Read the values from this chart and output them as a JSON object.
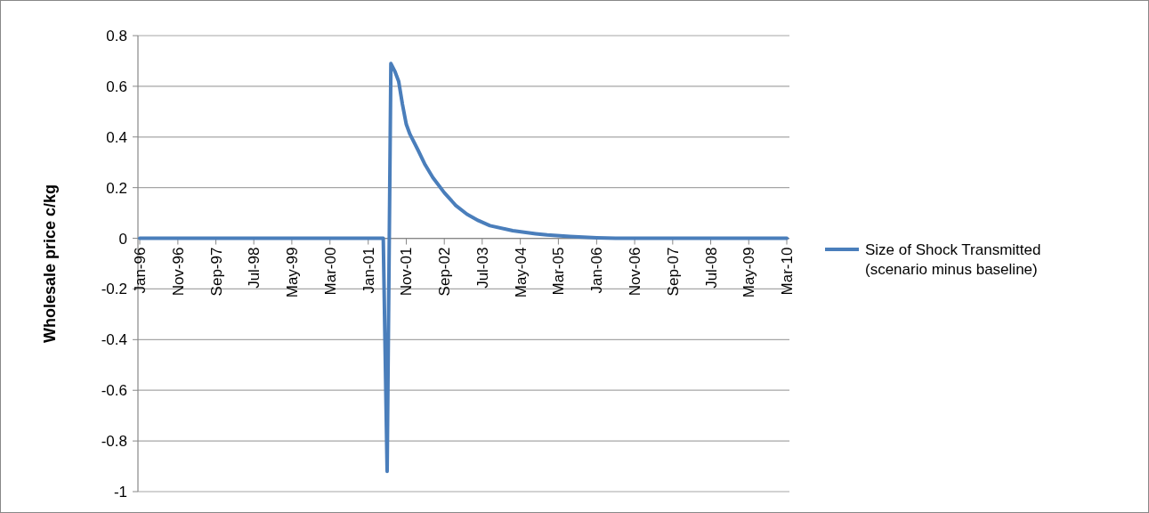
{
  "chart_data": {
    "type": "line",
    "ylabel": "Wholesale price c/kg",
    "x": [
      "1996-01",
      "2001-05",
      "2001-06",
      "2001-07",
      "2001-08",
      "2001-09",
      "2001-10",
      "2001-11",
      "2001-12",
      "2002-02",
      "2002-04",
      "2002-06",
      "2002-09",
      "2002-12",
      "2003-03",
      "2003-06",
      "2003-09",
      "2004-03",
      "2004-09",
      "2004-12",
      "2005-06",
      "2006-01",
      "2006-06",
      "2010-03"
    ],
    "series": [
      {
        "name": "Size of Shock Transmitted (scenario minus baseline)",
        "color": "#4a7ebb",
        "values": [
          0,
          0,
          -0.92,
          0.69,
          0.66,
          0.62,
          0.53,
          0.45,
          0.41,
          0.35,
          0.29,
          0.24,
          0.18,
          0.13,
          0.095,
          0.07,
          0.05,
          0.03,
          0.018,
          0.013,
          0.007,
          0.002,
          0,
          0
        ]
      }
    ],
    "xlim": [
      "1996-01",
      "2010-03"
    ],
    "xticks": [
      {
        "value": "1996-01",
        "label": "Jan-96"
      },
      {
        "value": "1996-11",
        "label": "Nov-96"
      },
      {
        "value": "1997-09",
        "label": "Sep-97"
      },
      {
        "value": "1998-07",
        "label": "Jul-98"
      },
      {
        "value": "1999-05",
        "label": "May-99"
      },
      {
        "value": "2000-03",
        "label": "Mar-00"
      },
      {
        "value": "2001-01",
        "label": "Jan-01"
      },
      {
        "value": "2001-11",
        "label": "Nov-01"
      },
      {
        "value": "2002-09",
        "label": "Sep-02"
      },
      {
        "value": "2003-07",
        "label": "Jul-03"
      },
      {
        "value": "2004-05",
        "label": "May-04"
      },
      {
        "value": "2005-03",
        "label": "Mar-05"
      },
      {
        "value": "2006-01",
        "label": "Jan-06"
      },
      {
        "value": "2006-11",
        "label": "Nov-06"
      },
      {
        "value": "2007-09",
        "label": "Sep-07"
      },
      {
        "value": "2008-07",
        "label": "Jul-08"
      },
      {
        "value": "2009-05",
        "label": "May-09"
      },
      {
        "value": "2010-03",
        "label": "Mar-10"
      }
    ],
    "ylim": [
      -1,
      0.8
    ],
    "yticks": [
      {
        "value": -1,
        "label": "-1"
      },
      {
        "value": -0.8,
        "label": "-0.8"
      },
      {
        "value": -0.6,
        "label": "-0.6"
      },
      {
        "value": -0.4,
        "label": "-0.4"
      },
      {
        "value": -0.2,
        "label": "-0.2"
      },
      0,
      {
        "value": 0.2,
        "label": "0.2"
      },
      {
        "value": 0.4,
        "label": "0.4"
      },
      {
        "value": 0.6,
        "label": "0.6"
      },
      {
        "value": 0.8,
        "label": "0.8"
      }
    ],
    "grid": "y",
    "legend": "right",
    "marker": "none",
    "line_style": "solid"
  }
}
